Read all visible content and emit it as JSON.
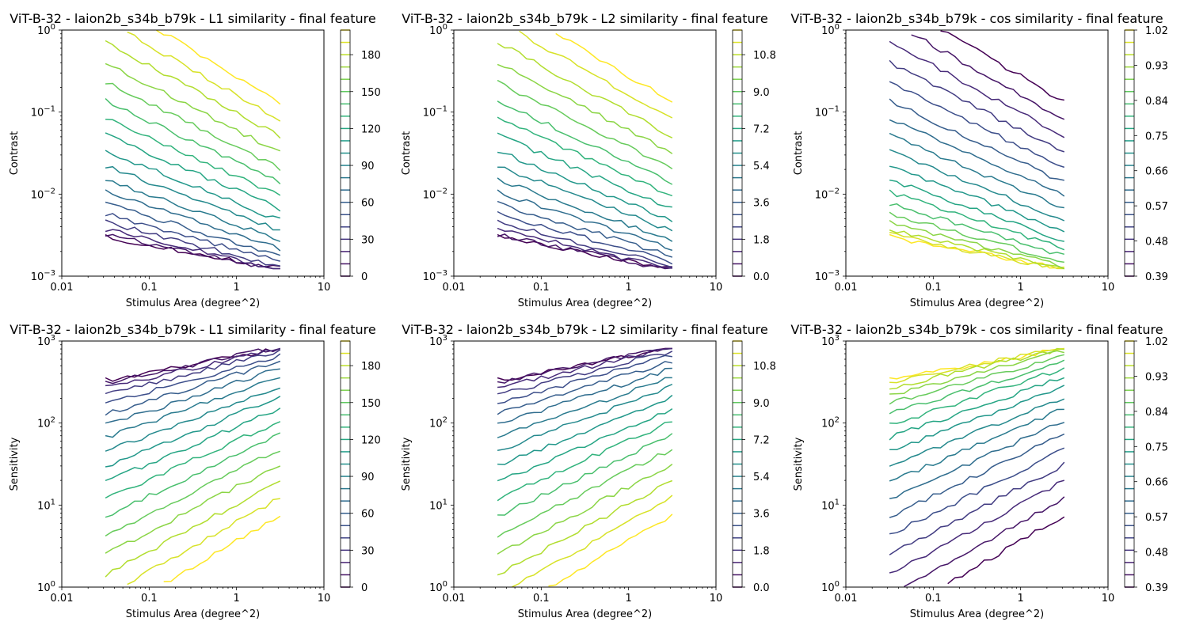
{
  "chart_data": [
    {
      "type": "contour",
      "title": "ViT-B-32 - laion2b_s34b_b79k - L1 similarity - final feature",
      "xlabel": "Stimulus Area (degree^2)",
      "ylabel": "Contrast",
      "xscale": "log",
      "yscale": "log",
      "xlim": [
        0.01,
        10
      ],
      "ylim": [
        0.001,
        1
      ],
      "x_ticks": [
        "0.01",
        "0.1",
        "1",
        "10"
      ],
      "y_ticks": [
        {
          "base": "10",
          "exp": "−3"
        },
        {
          "base": "10",
          "exp": "−2"
        },
        {
          "base": "10",
          "exp": "−1"
        },
        {
          "base": "10",
          "exp": "0"
        }
      ],
      "colormap": "viridis",
      "colorbar": {
        "min": 0,
        "max": 200,
        "levels": 21,
        "labels": [
          "0",
          "30",
          "60",
          "90",
          "120",
          "150",
          "180"
        ]
      },
      "data_x_range": [
        0.0316,
        3.16
      ],
      "data_y_range": [
        0.003,
        1
      ],
      "high_values_toward": "top-right"
    },
    {
      "type": "contour",
      "title": "ViT-B-32 - laion2b_s34b_b79k - L2 similarity - final feature",
      "xlabel": "Stimulus Area (degree^2)",
      "ylabel": "Contrast",
      "xscale": "log",
      "yscale": "log",
      "xlim": [
        0.01,
        10
      ],
      "ylim": [
        0.001,
        1
      ],
      "x_ticks": [
        "0.01",
        "0.1",
        "1",
        "10"
      ],
      "y_ticks": [
        {
          "base": "10",
          "exp": "−3"
        },
        {
          "base": "10",
          "exp": "−2"
        },
        {
          "base": "10",
          "exp": "−1"
        },
        {
          "base": "10",
          "exp": "0"
        }
      ],
      "colormap": "viridis",
      "colorbar": {
        "min": 0,
        "max": 12,
        "levels": 21,
        "labels": [
          "0.0",
          "1.8",
          "3.6",
          "5.4",
          "7.2",
          "9.0",
          "10.8"
        ]
      },
      "data_x_range": [
        0.0316,
        3.16
      ],
      "data_y_range": [
        0.003,
        1
      ],
      "high_values_toward": "top-right"
    },
    {
      "type": "contour",
      "title": "ViT-B-32 - laion2b_s34b_b79k - cos similarity - final feature",
      "xlabel": "Stimulus Area (degree^2)",
      "ylabel": "Contrast",
      "xscale": "log",
      "yscale": "log",
      "xlim": [
        0.01,
        10
      ],
      "ylim": [
        0.001,
        1
      ],
      "x_ticks": [
        "0.01",
        "0.1",
        "1",
        "10"
      ],
      "y_ticks": [
        {
          "base": "10",
          "exp": "−3"
        },
        {
          "base": "10",
          "exp": "−2"
        },
        {
          "base": "10",
          "exp": "−1"
        },
        {
          "base": "10",
          "exp": "0"
        }
      ],
      "colormap": "viridis",
      "colorbar": {
        "min": 0.39,
        "max": 1.02,
        "levels": 21,
        "labels": [
          "0.39",
          "0.48",
          "0.57",
          "0.66",
          "0.75",
          "0.84",
          "0.93",
          "1.02"
        ]
      },
      "data_x_range": [
        0.0316,
        3.16
      ],
      "data_y_range": [
        0.003,
        1
      ],
      "high_values_toward": "bottom-left"
    },
    {
      "type": "contour",
      "title": "ViT-B-32 - laion2b_s34b_b79k - L1 similarity - final feature",
      "xlabel": "Stimulus Area (degree^2)",
      "ylabel": "Sensitivity",
      "xscale": "log",
      "yscale": "log",
      "xlim": [
        0.01,
        10
      ],
      "ylim": [
        1,
        1000
      ],
      "x_ticks": [
        "0.01",
        "0.1",
        "1",
        "10"
      ],
      "y_ticks": [
        {
          "base": "10",
          "exp": "0"
        },
        {
          "base": "10",
          "exp": "1"
        },
        {
          "base": "10",
          "exp": "2"
        },
        {
          "base": "10",
          "exp": "3"
        }
      ],
      "colormap": "viridis",
      "colorbar": {
        "min": 0,
        "max": 200,
        "levels": 21,
        "labels": [
          "0",
          "30",
          "60",
          "90",
          "120",
          "150",
          "180"
        ]
      },
      "data_x_range": [
        0.0316,
        3.16
      ],
      "data_y_range": [
        1,
        333
      ],
      "high_values_toward": "bottom-right"
    },
    {
      "type": "contour",
      "title": "ViT-B-32 - laion2b_s34b_b79k - L2 similarity - final feature",
      "xlabel": "Stimulus Area (degree^2)",
      "ylabel": "Sensitivity",
      "xscale": "log",
      "yscale": "log",
      "xlim": [
        0.01,
        10
      ],
      "ylim": [
        1,
        1000
      ],
      "x_ticks": [
        "0.01",
        "0.1",
        "1",
        "10"
      ],
      "y_ticks": [
        {
          "base": "10",
          "exp": "0"
        },
        {
          "base": "10",
          "exp": "1"
        },
        {
          "base": "10",
          "exp": "2"
        },
        {
          "base": "10",
          "exp": "3"
        }
      ],
      "colormap": "viridis",
      "colorbar": {
        "min": 0,
        "max": 12,
        "levels": 21,
        "labels": [
          "0.0",
          "1.8",
          "3.6",
          "5.4",
          "7.2",
          "9.0",
          "10.8"
        ]
      },
      "data_x_range": [
        0.0316,
        3.16
      ],
      "data_y_range": [
        1,
        333
      ],
      "high_values_toward": "bottom-right"
    },
    {
      "type": "contour",
      "title": "ViT-B-32 - laion2b_s34b_b79k - cos similarity - final feature",
      "xlabel": "Stimulus Area (degree^2)",
      "ylabel": "Sensitivity",
      "xscale": "log",
      "yscale": "log",
      "xlim": [
        0.01,
        10
      ],
      "ylim": [
        1,
        1000
      ],
      "x_ticks": [
        "0.01",
        "0.1",
        "1",
        "10"
      ],
      "y_ticks": [
        {
          "base": "10",
          "exp": "0"
        },
        {
          "base": "10",
          "exp": "1"
        },
        {
          "base": "10",
          "exp": "2"
        },
        {
          "base": "10",
          "exp": "3"
        }
      ],
      "colormap": "viridis",
      "colorbar": {
        "min": 0.39,
        "max": 1.02,
        "levels": 21,
        "labels": [
          "0.39",
          "0.48",
          "0.57",
          "0.66",
          "0.75",
          "0.84",
          "0.93",
          "1.02"
        ]
      },
      "data_x_range": [
        0.0316,
        3.16
      ],
      "data_y_range": [
        1,
        333
      ],
      "high_values_toward": "top-left"
    }
  ]
}
